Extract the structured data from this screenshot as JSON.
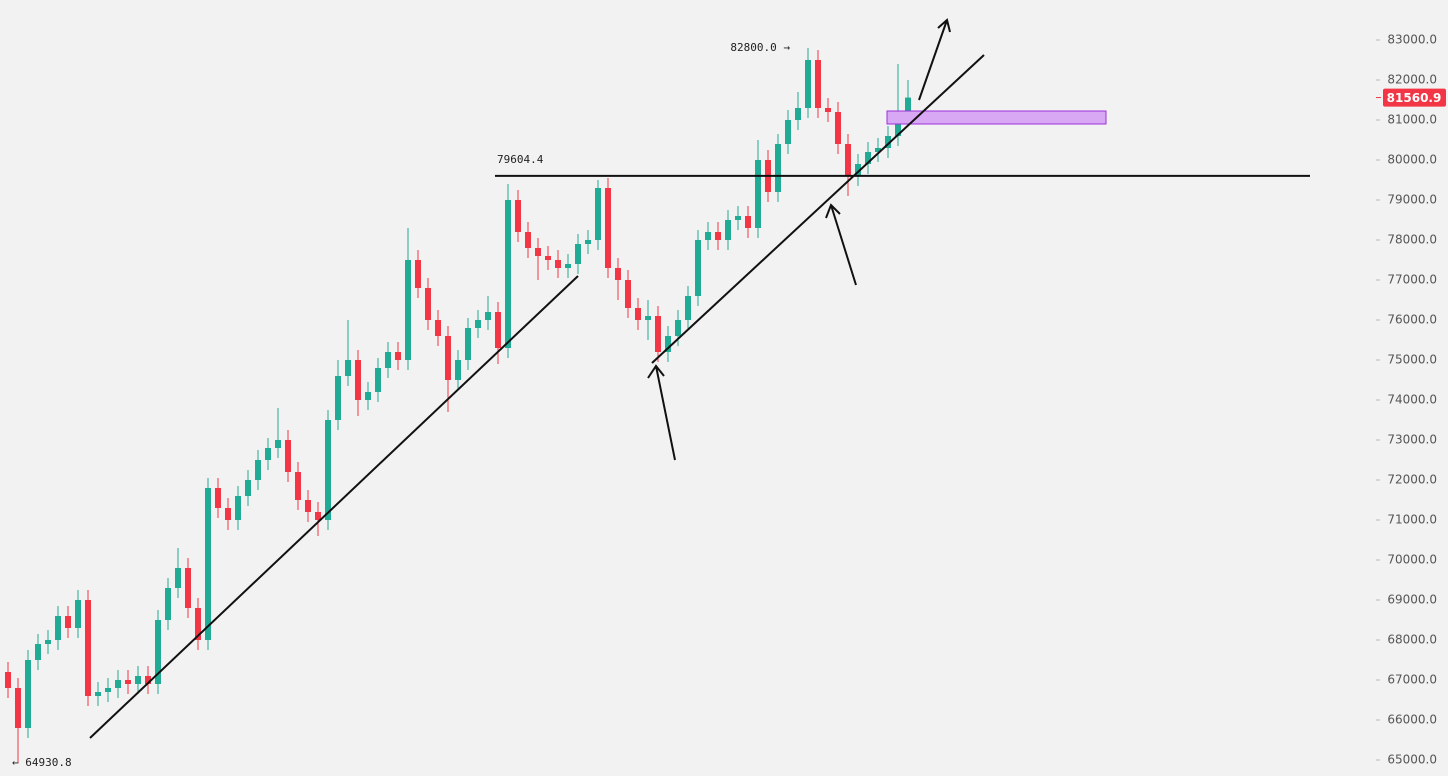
{
  "chart_data": {
    "type": "candlestick",
    "up_color": "#22ab94",
    "down_color": "#f23645",
    "ylim": [
      64600,
      84000
    ],
    "yticks": [
      {
        "value": 65000,
        "label": "65000.0"
      },
      {
        "value": 66000,
        "label": "66000.0"
      },
      {
        "value": 67000,
        "label": "67000.0"
      },
      {
        "value": 68000,
        "label": "68000.0"
      },
      {
        "value": 69000,
        "label": "69000.0"
      },
      {
        "value": 70000,
        "label": "70000.0"
      },
      {
        "value": 71000,
        "label": "71000.0"
      },
      {
        "value": 72000,
        "label": "72000.0"
      },
      {
        "value": 73000,
        "label": "73000.0"
      },
      {
        "value": 74000,
        "label": "74000.0"
      },
      {
        "value": 75000,
        "label": "75000.0"
      },
      {
        "value": 76000,
        "label": "76000.0"
      },
      {
        "value": 77000,
        "label": "77000.0"
      },
      {
        "value": 78000,
        "label": "78000.0"
      },
      {
        "value": 79000,
        "label": "79000.0"
      },
      {
        "value": 80000,
        "label": "80000.0"
      },
      {
        "value": 81000,
        "label": "81000.0"
      },
      {
        "value": 82000,
        "label": "82000.0"
      },
      {
        "value": 83000,
        "label": "83000.0"
      }
    ],
    "open": [
      67200,
      66800,
      65800,
      67500,
      67900,
      68000,
      68600,
      68300,
      69000,
      66600,
      66700,
      66800,
      67000,
      66900,
      67100,
      66900,
      68500,
      69300,
      69800,
      68800,
      68000,
      71800,
      71300,
      71000,
      71600,
      72000,
      72500,
      72800,
      73000,
      72200,
      71500,
      71200,
      71000,
      73500,
      74600,
      75000,
      74000,
      74200,
      74800,
      75200,
      75000,
      77500,
      76800,
      76000,
      75600,
      74500,
      75000,
      75800,
      76000,
      76200,
      75300,
      79000,
      78200,
      77800,
      77600,
      77500,
      77300,
      77400,
      77900,
      78000,
      79300,
      77300,
      77000,
      76300,
      76000,
      76100,
      75200,
      75600,
      76000,
      76600,
      78000,
      78200,
      78000,
      78500,
      78600,
      78300,
      80000,
      79200,
      80400,
      81000,
      81300,
      82500,
      81300,
      81200,
      80400,
      79600,
      79900,
      80200,
      80300,
      80600,
      81200
    ],
    "high": [
      67450,
      67050,
      67750,
      68150,
      68250,
      68850,
      68850,
      69250,
      69250,
      66950,
      67050,
      67250,
      67250,
      67350,
      67350,
      68750,
      69550,
      70300,
      70050,
      69050,
      72050,
      72050,
      71550,
      71850,
      72250,
      72750,
      73050,
      73800,
      73250,
      72450,
      71750,
      71450,
      73750,
      75000,
      76000,
      75250,
      74450,
      75050,
      75450,
      75450,
      78300,
      77750,
      77050,
      76250,
      75850,
      75250,
      76050,
      76250,
      76600,
      76450,
      79400,
      79250,
      78450,
      78050,
      77850,
      77750,
      77650,
      78150,
      78250,
      79500,
      79550,
      77550,
      77250,
      76550,
      76500,
      76350,
      75850,
      76250,
      76850,
      78250,
      78450,
      78450,
      78750,
      78850,
      78850,
      80500,
      80250,
      80650,
      81250,
      81700,
      82800,
      82750,
      81550,
      81450,
      80650,
      80150,
      80450,
      80550,
      80850,
      82400,
      82000
    ],
    "low": [
      66550,
      64930.8,
      65550,
      67250,
      67650,
      67750,
      68050,
      68050,
      66350,
      66350,
      66450,
      66550,
      66650,
      66650,
      66650,
      66650,
      68250,
      69050,
      68550,
      67750,
      67750,
      71050,
      70750,
      70750,
      71350,
      71750,
      72250,
      72550,
      71950,
      71250,
      70950,
      70600,
      70750,
      73250,
      74350,
      73600,
      73750,
      73950,
      74550,
      74750,
      74750,
      76550,
      75750,
      75350,
      73700,
      74250,
      74750,
      75550,
      75750,
      74900,
      75050,
      77950,
      77550,
      77000,
      77250,
      77050,
      77050,
      77150,
      77650,
      77750,
      77050,
      76500,
      76050,
      75750,
      75500,
      74950,
      74950,
      75350,
      75750,
      76350,
      77750,
      77750,
      77750,
      78250,
      78050,
      78050,
      78950,
      78950,
      80150,
      80750,
      81050,
      81050,
      80950,
      80150,
      79100,
      79350,
      79650,
      79950,
      80050,
      80350,
      80950
    ],
    "close": [
      66800,
      65800,
      67500,
      67900,
      68000,
      68600,
      68300,
      69000,
      66600,
      66700,
      66800,
      67000,
      66900,
      67100,
      66900,
      68500,
      69300,
      69800,
      68800,
      68000,
      71800,
      71300,
      71000,
      71600,
      72000,
      72500,
      72800,
      73000,
      72200,
      71500,
      71200,
      71000,
      73500,
      74600,
      75000,
      74000,
      74200,
      74800,
      75200,
      75000,
      77500,
      76800,
      76000,
      75600,
      74500,
      75000,
      75800,
      76000,
      76200,
      75300,
      79000,
      78200,
      77800,
      77600,
      77500,
      77300,
      77400,
      77900,
      78000,
      79300,
      77300,
      77000,
      76300,
      76000,
      76100,
      75200,
      75600,
      76000,
      76600,
      78000,
      78200,
      78000,
      78500,
      78600,
      78300,
      80000,
      79200,
      80400,
      81000,
      81300,
      82500,
      81300,
      81200,
      80400,
      79600,
      79900,
      80200,
      80300,
      80600,
      81200,
      81560.9
    ],
    "annotations": [
      {
        "label": "82800.0 →",
        "value": 82800
      },
      {
        "label": "← 64930.8",
        "value": 64930.8
      },
      {
        "label": "79604.4",
        "value": 79604.4
      }
    ],
    "last_price": {
      "value": 81560.9,
      "label": "81560.9",
      "color": "#f23645"
    }
  }
}
